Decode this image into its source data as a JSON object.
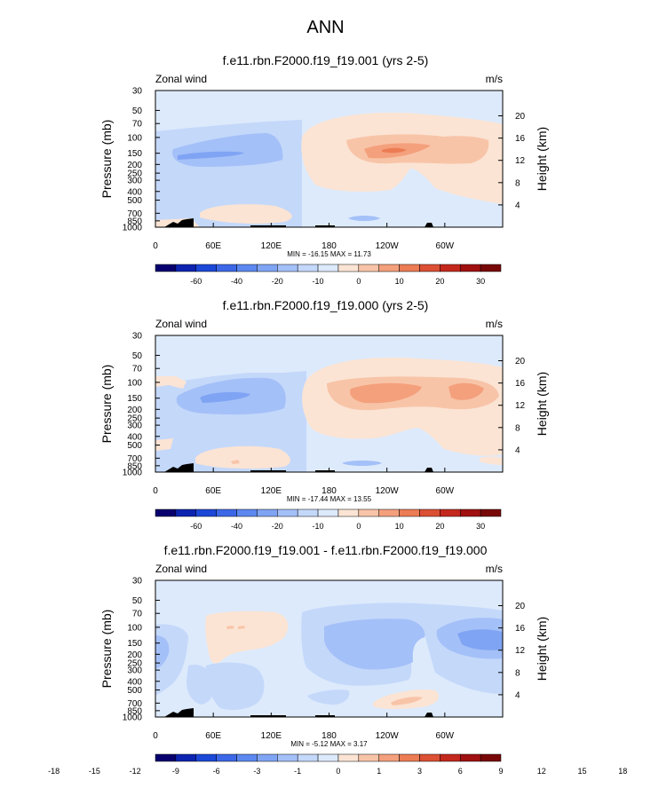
{
  "main_title": "ANN",
  "chart_data": [
    {
      "type": "heatmap",
      "title": "f.e11.rbn.F2000.f19_f19.001 (yrs 2-5)",
      "variable_label": "Zonal wind",
      "units_label": "m/s",
      "ylabel": "Pressure (mb)",
      "ylabel_right": "Height (km)",
      "x_ticks": [
        "0",
        "60E",
        "120E",
        "180",
        "120W",
        "60W"
      ],
      "y_ticks": [
        "30",
        "50",
        "70",
        "100",
        "150",
        "200",
        "250",
        "300",
        "400",
        "500",
        "700",
        "850",
        "1000"
      ],
      "height_ticks": [
        "20",
        "16",
        "12",
        "8",
        "4"
      ],
      "stats": "MIN = -16.15  MAX =  11.73",
      "colorbar_labels": [
        "-60",
        "-40",
        "-20",
        "-10",
        "0",
        "10",
        "20",
        "30"
      ],
      "colorbar_colors": [
        "#08006e",
        "#0c24b0",
        "#1c48d8",
        "#3c68e8",
        "#5c88f0",
        "#80a4f4",
        "#a4c0f8",
        "#c4d8fa",
        "#ddeafc",
        "#fbe4d4",
        "#f8c4a8",
        "#f4a07c",
        "#ec7c54",
        "#dc5034",
        "#c4281c",
        "#a01010",
        "#780808"
      ],
      "min": -16.15,
      "max": 11.73
    },
    {
      "type": "heatmap",
      "title": "f.e11.rbn.F2000.f19_f19.000 (yrs 2-5)",
      "variable_label": "Zonal wind",
      "units_label": "m/s",
      "ylabel": "Pressure (mb)",
      "ylabel_right": "Height (km)",
      "x_ticks": [
        "0",
        "60E",
        "120E",
        "180",
        "120W",
        "60W"
      ],
      "y_ticks": [
        "30",
        "50",
        "70",
        "100",
        "150",
        "200",
        "250",
        "300",
        "400",
        "500",
        "700",
        "850",
        "1000"
      ],
      "height_ticks": [
        "20",
        "16",
        "12",
        "8",
        "4"
      ],
      "stats": "MIN = -17.44  MAX =  13.55",
      "colorbar_labels": [
        "-60",
        "-40",
        "-20",
        "-10",
        "0",
        "10",
        "20",
        "30"
      ],
      "colorbar_colors": [
        "#08006e",
        "#0c24b0",
        "#1c48d8",
        "#3c68e8",
        "#5c88f0",
        "#80a4f4",
        "#a4c0f8",
        "#c4d8fa",
        "#ddeafc",
        "#fbe4d4",
        "#f8c4a8",
        "#f4a07c",
        "#ec7c54",
        "#dc5034",
        "#c4281c",
        "#a01010",
        "#780808"
      ],
      "min": -17.44,
      "max": 13.55
    },
    {
      "type": "heatmap",
      "title": "f.e11.rbn.F2000.f19_f19.001 - f.e11.rbn.F2000.f19_f19.000",
      "variable_label": "Zonal wind",
      "units_label": "m/s",
      "ylabel": "Pressure (mb)",
      "ylabel_right": "Height (km)",
      "x_ticks": [
        "0",
        "60E",
        "120E",
        "180",
        "120W",
        "60W"
      ],
      "y_ticks": [
        "30",
        "50",
        "70",
        "100",
        "150",
        "200",
        "250",
        "300",
        "400",
        "500",
        "700",
        "850",
        "1000"
      ],
      "height_ticks": [
        "20",
        "16",
        "12",
        "8",
        "4"
      ],
      "stats": "MIN = -5.12  MAX =  3.17",
      "colorbar_labels": [
        "-18",
        "-15",
        "-12",
        "-9",
        "-6",
        "-3",
        "-1",
        "0",
        "1",
        "3",
        "6",
        "9",
        "12",
        "15",
        "18"
      ],
      "colorbar_colors": [
        "#08006e",
        "#0c24b0",
        "#1c48d8",
        "#3c68e8",
        "#5c88f0",
        "#80a4f4",
        "#a4c0f8",
        "#c4d8fa",
        "#ddeafc",
        "#fbe4d4",
        "#f8c4a8",
        "#f4a07c",
        "#ec7c54",
        "#dc5034",
        "#c4281c",
        "#a01010",
        "#780808"
      ],
      "min": -5.12,
      "max": 3.17
    }
  ]
}
